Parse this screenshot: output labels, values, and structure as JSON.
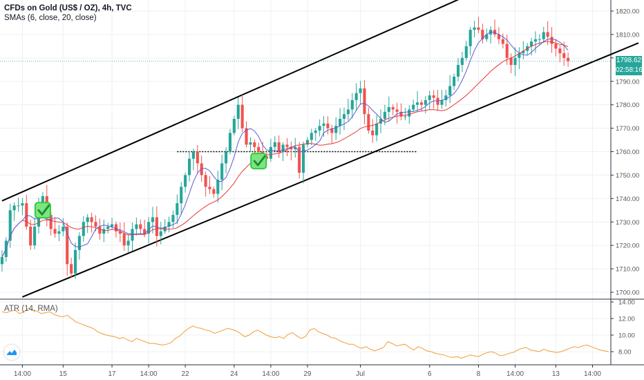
{
  "header": {
    "title": "CFDs on Gold (US$ / OZ), 4h, TVC",
    "indicator": "SMAs (6, close, 20, close)",
    "atr_label": "ATR (14, RMA)"
  },
  "price_tags": {
    "last_price": "1798.62",
    "countdown": "02:58:16"
  },
  "colors": {
    "up": "#26a69a",
    "down": "#ef5350",
    "sma_fast": "#5b5bd6",
    "sma_slow": "#e53935",
    "atr": "#f39c33",
    "channel": "#000000",
    "tag_bg": "#26a69a",
    "logo": "#2196f3"
  },
  "icons": {
    "check": "check-mark-icon",
    "logo": "tradingview-logo-icon"
  },
  "chart_data": [
    {
      "type": "candlestick",
      "title": "CFDs on Gold (US$ / OZ), 4h, TVC",
      "series_names": [
        "SMA 6",
        "SMA 20"
      ],
      "y_ticks": [
        "1700.00",
        "1710.00",
        "1720.00",
        "1730.00",
        "1740.00",
        "1750.00",
        "1760.00",
        "1770.00",
        "1780.00",
        "1790.00",
        "1800.00",
        "1810.00",
        "1820.00"
      ],
      "ylim": [
        1697,
        1824
      ],
      "x_tick_labels": [
        "14:00",
        "15",
        "17",
        "14:00",
        "22",
        "24",
        "14:00",
        "29",
        "Jul",
        "6",
        "8",
        "14:00",
        "13",
        "14:00"
      ],
      "x_tick_bars": [
        5,
        15,
        27,
        36,
        45,
        57,
        66,
        75,
        88,
        105,
        117,
        126,
        136,
        145
      ],
      "closes": [
        1715,
        1722,
        1735,
        1737,
        1737,
        1738,
        1728,
        1720,
        1728,
        1737,
        1741,
        1733,
        1727,
        1725,
        1726,
        1728,
        1712,
        1708,
        1718,
        1724,
        1730,
        1732,
        1730,
        1728,
        1725,
        1727,
        1728,
        1729,
        1726,
        1725,
        1720,
        1722,
        1727,
        1729,
        1727,
        1725,
        1730,
        1732,
        1724,
        1726,
        1728,
        1730,
        1733,
        1738,
        1745,
        1750,
        1757,
        1760,
        1755,
        1750,
        1745,
        1744,
        1742,
        1748,
        1755,
        1760,
        1768,
        1774,
        1780,
        1770,
        1763,
        1764,
        1762,
        1760,
        1758,
        1757,
        1762,
        1764,
        1760,
        1763,
        1762,
        1761,
        1762,
        1751,
        1763,
        1765,
        1768,
        1769,
        1771,
        1772,
        1770,
        1768,
        1771,
        1774,
        1776,
        1778,
        1782,
        1785,
        1787,
        1776,
        1769,
        1767,
        1772,
        1774,
        1777,
        1779,
        1778,
        1777,
        1775,
        1775,
        1778,
        1780,
        1781,
        1780,
        1782,
        1784,
        1783,
        1780,
        1782,
        1784,
        1788,
        1792,
        1797,
        1800,
        1805,
        1812,
        1813,
        1812,
        1808,
        1810,
        1812,
        1810,
        1808,
        1806,
        1800,
        1797,
        1800,
        1802,
        1803,
        1805,
        1807,
        1808,
        1808,
        1811,
        1809,
        1806,
        1804,
        1802,
        1800,
        1798.62
      ],
      "x_extent_bars": 150,
      "channel_upper": [
        [
          0,
          1739
        ],
        [
          120,
          1831
        ]
      ],
      "channel_lower": [
        [
          5,
          1698
        ],
        [
          146,
          1799
        ]
      ],
      "support_level": {
        "value": 1760,
        "from_bar": 43,
        "to_bar": 102
      },
      "check_marks": [
        {
          "bar": 10,
          "value": 1735
        },
        {
          "bar": 63,
          "value": 1756
        }
      ],
      "last_price_line": 1798.62
    },
    {
      "type": "line",
      "title": "ATR (14, RMA)",
      "series_names": [
        "ATR"
      ],
      "y_ticks": [
        "8.00",
        "10.00",
        "12.00",
        "14.00"
      ],
      "ylim": [
        7.0,
        14.0
      ],
      "values": [
        12.8,
        12.7,
        12.9,
        13.0,
        12.6,
        12.8,
        13.2,
        13.0,
        12.9,
        12.6,
        12.7,
        12.8,
        12.5,
        12.3,
        12.2,
        12.4,
        12.0,
        11.6,
        11.4,
        11.2,
        11.0,
        10.8,
        10.4,
        10.2,
        10.0,
        9.9,
        9.8,
        9.6,
        9.7,
        9.4,
        9.2,
        9.6,
        9.4,
        9.2,
        9.0,
        9.0,
        8.9,
        8.8,
        8.9,
        9.1,
        9.6,
        9.9,
        10.4,
        10.8,
        11.1,
        10.9,
        10.8,
        10.6,
        10.5,
        10.2,
        10.4,
        10.6,
        10.8,
        10.7,
        10.5,
        10.2,
        9.8,
        10.0,
        10.4,
        10.6,
        10.3,
        10.0,
        9.8,
        9.7,
        9.8,
        9.6,
        10.1,
        10.3,
        9.9,
        9.6,
        9.8,
        10.6,
        10.8,
        10.4,
        10.2,
        10.0,
        9.7,
        9.6,
        9.3,
        9.1,
        8.9,
        8.9,
        8.6,
        8.4,
        8.6,
        8.3,
        8.1,
        8.3,
        8.5,
        9.2,
        9.0,
        8.7,
        8.8,
        8.9,
        8.5,
        8.2,
        8.6,
        8.4,
        8.1,
        8.0,
        7.8,
        7.7,
        7.6,
        7.4,
        7.3,
        7.4,
        7.2,
        7.4,
        7.6,
        7.5,
        7.4,
        7.7,
        7.9,
        8.0,
        7.8,
        7.5,
        7.6,
        7.8,
        7.9,
        8.2,
        8.4,
        8.5,
        8.2,
        8.1,
        8.0,
        8.3,
        8.1,
        8.0,
        7.9,
        8.0,
        8.2,
        8.4,
        8.6,
        8.5,
        8.7,
        8.8,
        8.6,
        8.4,
        8.2,
        8.1,
        8.0
      ],
      "color": "#f39c33"
    }
  ]
}
